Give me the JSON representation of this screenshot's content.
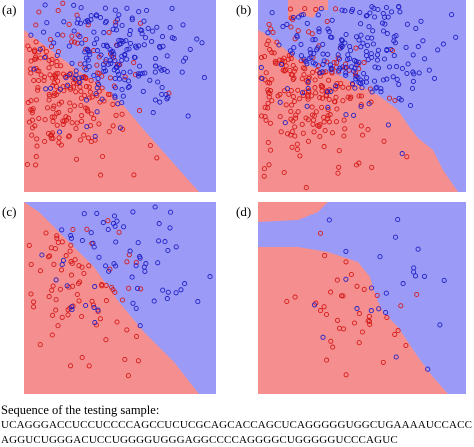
{
  "colors": {
    "class_red": "#f58f8f",
    "class_blue": "#9b9bf7",
    "point_red": "#d61a1a",
    "point_blue": "#2020c8"
  },
  "panels": [
    {
      "label": "(a)"
    },
    {
      "label": "(b)"
    },
    {
      "label": "(c)"
    },
    {
      "label": "(d)"
    }
  ],
  "caption": "Sequence of the testing sample:",
  "sequence_line1": "UCAGGGACCUCCUCCCCAGCCUCUCGCAGCACCAGCUCAGGGGGUGGCUGAAAAUCCACC",
  "sequence_line2": "AGGUCUGGGACUCCUGGGGUGGGAGGCCCCAGGGGCUGGGGGUCCCAGUC",
  "chart_data": [
    {
      "type": "scatter",
      "panel": "(a)",
      "series": [
        {
          "color": "red",
          "point_count": 280
        },
        {
          "color": "blue",
          "point_count": 220
        }
      ],
      "decision_boundary": "linear"
    },
    {
      "type": "scatter",
      "panel": "(b)",
      "series": [
        {
          "color": "red",
          "point_count": 280
        },
        {
          "color": "blue",
          "point_count": 220
        }
      ],
      "decision_boundary": "nonlinear"
    },
    {
      "type": "scatter",
      "panel": "(c)",
      "series": [
        {
          "color": "red",
          "point_count": 90
        },
        {
          "color": "blue",
          "point_count": 80
        }
      ],
      "decision_boundary": "linear"
    },
    {
      "type": "scatter",
      "panel": "(d)",
      "series": [
        {
          "color": "red",
          "point_count": 40
        },
        {
          "color": "blue",
          "point_count": 30
        }
      ],
      "decision_boundary": "nonlinear"
    }
  ]
}
